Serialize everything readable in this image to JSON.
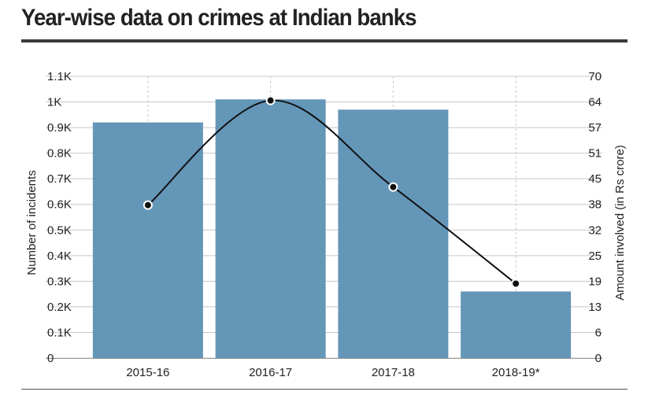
{
  "title": "Year-wise data on crimes at Indian banks",
  "chart_data": {
    "type": "bar",
    "categories": [
      "2015-16",
      "2016-17",
      "2017-18",
      "2018-19*"
    ],
    "series": [
      {
        "name": "Number of incidents",
        "kind": "bar",
        "axis": "left",
        "values": [
          920,
          1010,
          970,
          260
        ]
      },
      {
        "name": "Amount involved (in Rs crore)",
        "kind": "line",
        "axis": "right",
        "values": [
          38,
          64,
          42.5,
          18.5
        ]
      }
    ],
    "ylabel": "Number of incidents",
    "y2label": "Amount involved (in Rs crore)",
    "ylim": [
      0,
      1100
    ],
    "y2lim": [
      0,
      70
    ],
    "yticks": [
      "0",
      "0.1K",
      "0.2K",
      "0.3K",
      "0.4K",
      "0.5K",
      "0.6K",
      "0.7K",
      "0.8K",
      "0.9K",
      "1K",
      "1.1K"
    ],
    "y2ticks": [
      "0",
      "6",
      "13",
      "19",
      "25",
      "32",
      "38",
      "45",
      "51",
      "57",
      "64",
      "70"
    ],
    "grid": true,
    "colors": {
      "bar": "#6496b8",
      "line": "#111111",
      "grid": "#c8c8c8"
    }
  }
}
